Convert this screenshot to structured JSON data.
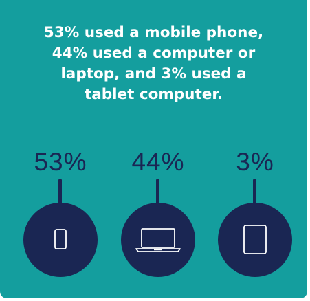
{
  "headline": {
    "line1": "53% used a mobile phone,",
    "line2": "44% used a computer or",
    "line3": "laptop, and 3% used a",
    "line4": "tablet computer."
  },
  "stats": [
    {
      "value": "53%",
      "icon": "mobile-phone-icon"
    },
    {
      "value": "44%",
      "icon": "laptop-icon"
    },
    {
      "value": "3%",
      "icon": "tablet-icon"
    }
  ],
  "colors": {
    "background": "#149e9e",
    "accent": "#1a2653",
    "text": "#ffffff"
  }
}
